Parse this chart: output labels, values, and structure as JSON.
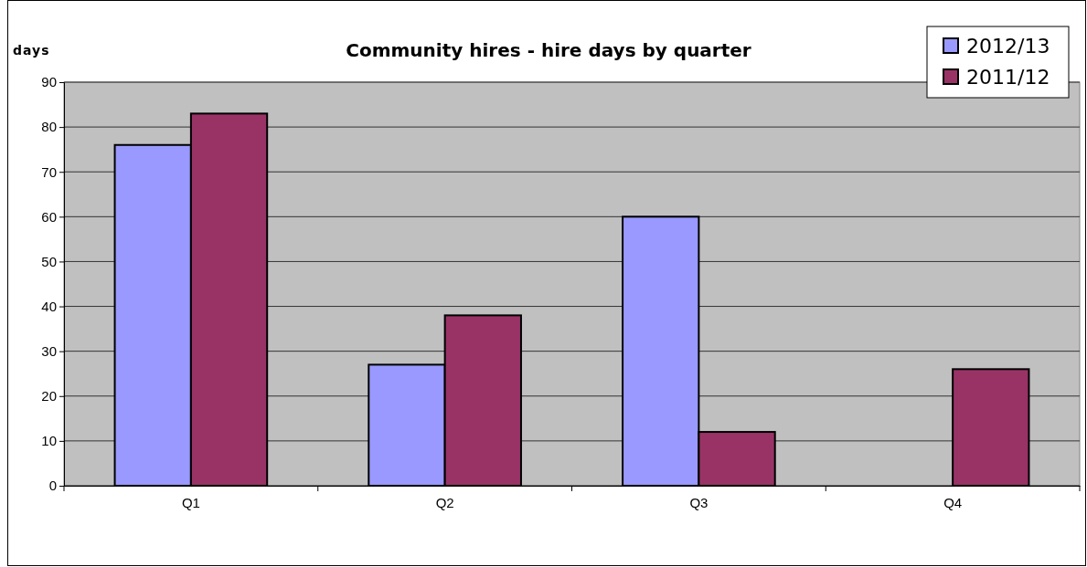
{
  "chart_data": {
    "type": "bar",
    "title": "Community hires - hire days by quarter",
    "ylabel": "days",
    "categories": [
      "Q1",
      "Q2",
      "Q3",
      "Q4"
    ],
    "series": [
      {
        "name": "2012/13",
        "color": "#9999ff",
        "values": [
          76,
          27,
          60,
          null
        ]
      },
      {
        "name": "2011/12",
        "color": "#993366",
        "values": [
          83,
          38,
          12,
          26
        ]
      }
    ],
    "ylim": [
      0,
      90
    ],
    "yticks": [
      0,
      10,
      20,
      30,
      40,
      50,
      60,
      70,
      80,
      90
    ],
    "grid": "y",
    "legend": "top right"
  }
}
